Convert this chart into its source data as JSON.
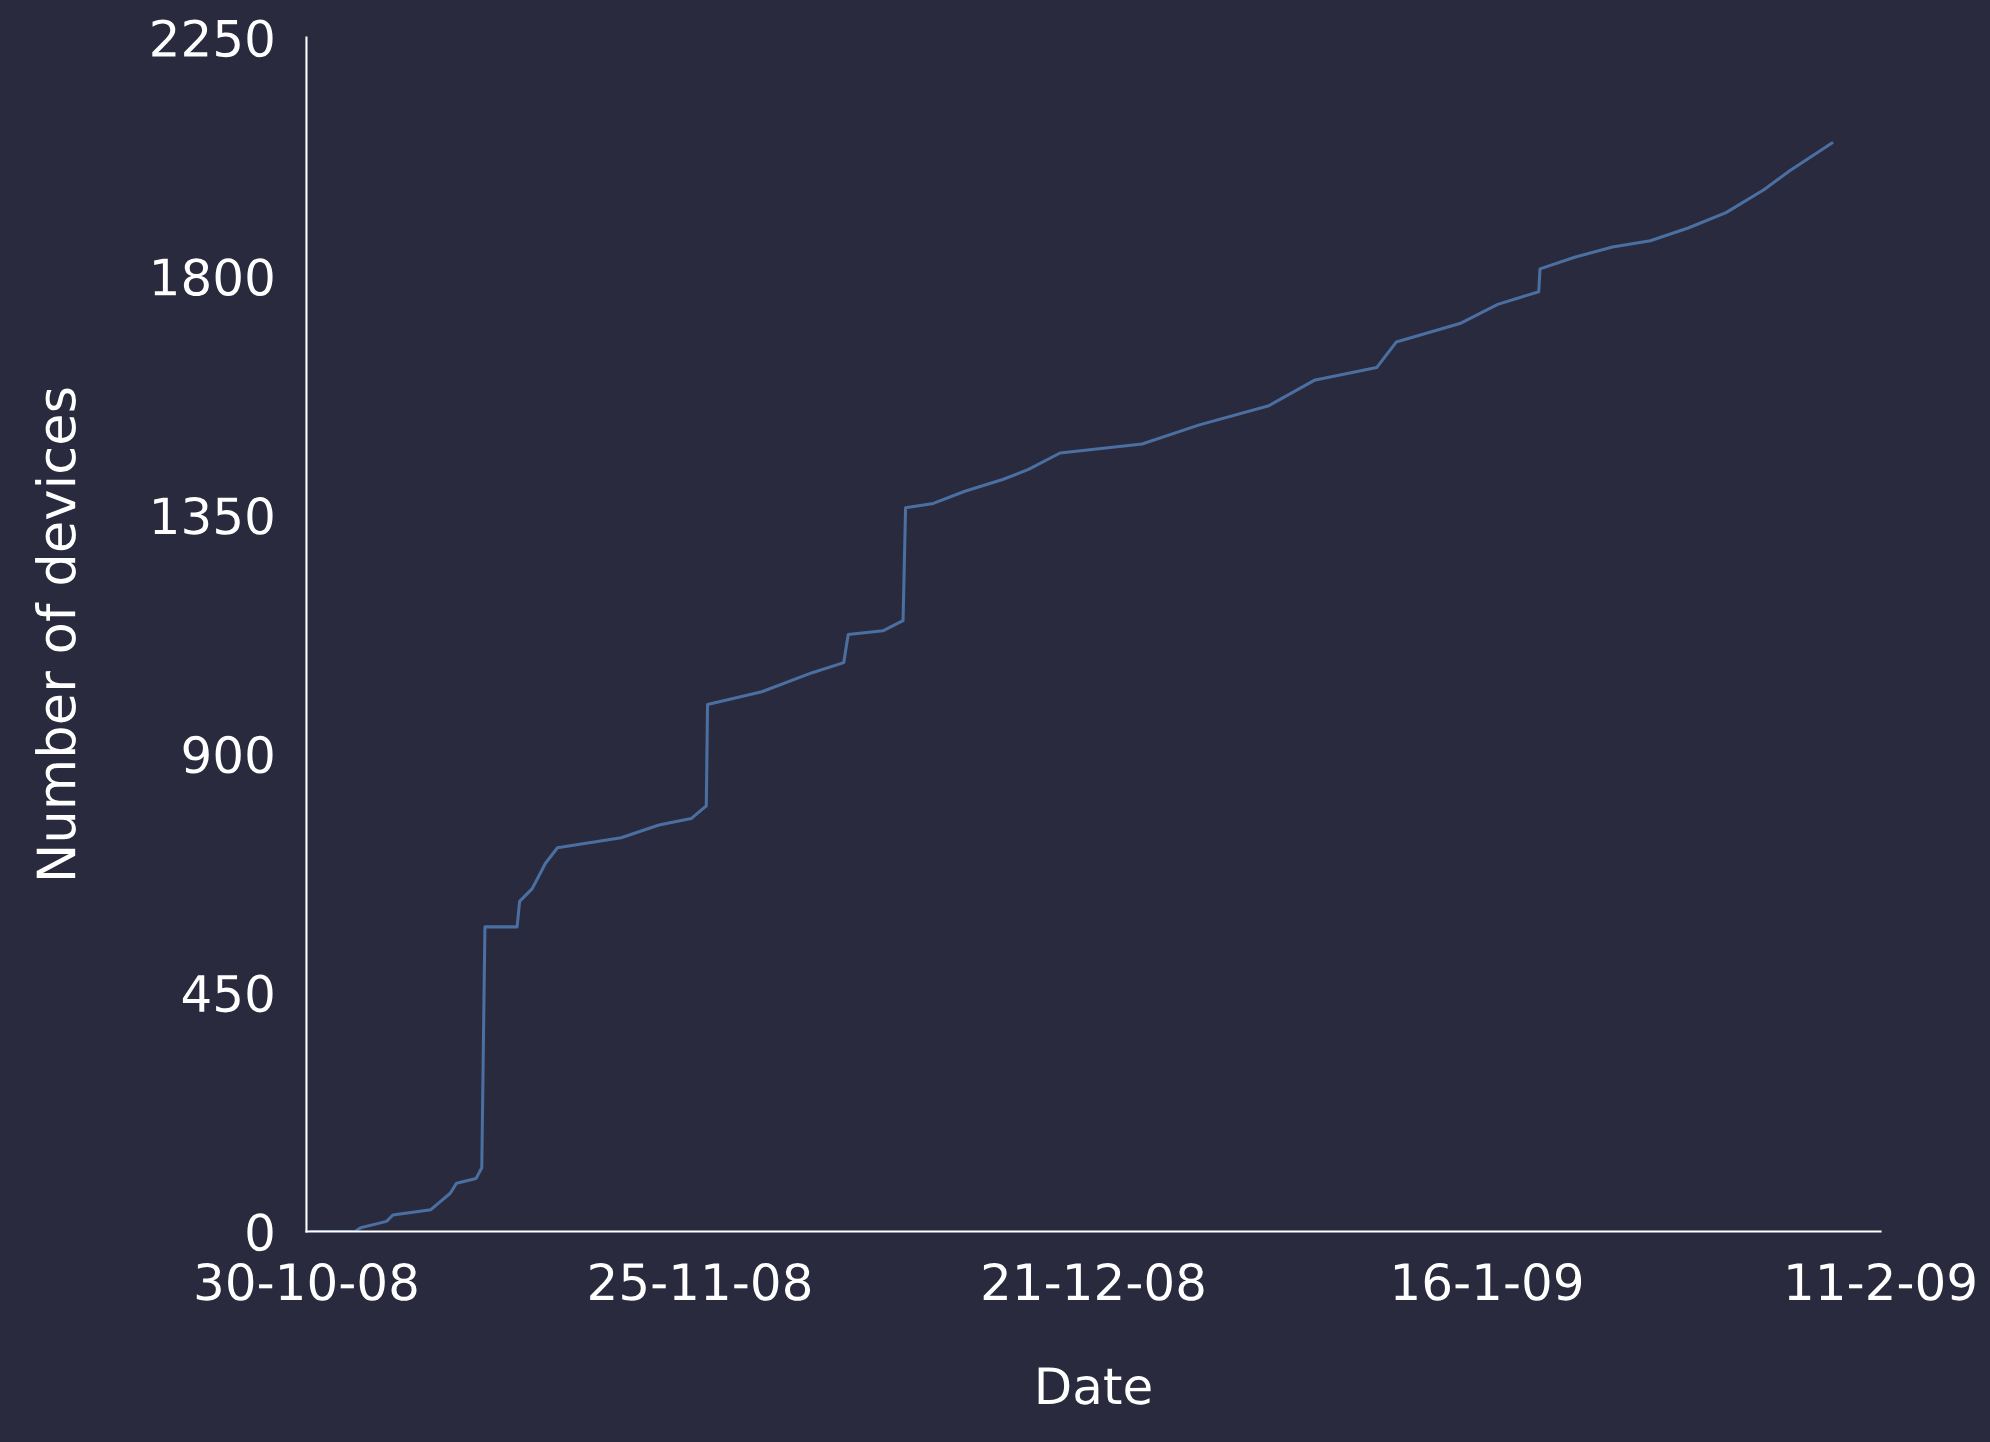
{
  "chart_data": {
    "type": "line",
    "xlabel": "Date",
    "ylabel": "Number of devices",
    "x": [
      "2008-10-30T06:00",
      "2008-11-02T05:00",
      "2008-11-02T14:00",
      "2008-11-04T07:00",
      "2008-11-04T17:00",
      "2008-11-07T05:00",
      "2008-11-07T17:00",
      "2008-11-08T12:00",
      "2008-11-08T22:00",
      "2008-11-10T05:00",
      "2008-11-10T14:00",
      "2008-11-10T19:00",
      "2008-11-12T22:00",
      "2008-11-13T02:00",
      "2008-11-13T22:00",
      "2008-11-14T19:00",
      "2008-11-15T14:00",
      "2008-11-19T19:00",
      "2008-11-22T07:00",
      "2008-11-24T10:00",
      "2008-11-25T10:00",
      "2008-11-25T12:00",
      "2008-11-29T02:00",
      "2008-12-02T10:00",
      "2008-12-04T12:00",
      "2008-12-04T19:00",
      "2008-12-07T02:00",
      "2008-12-08T10:00",
      "2008-12-08T14:00",
      "2008-12-10T10:00",
      "2008-12-12T12:00",
      "2008-12-15T00:00",
      "2008-12-16T17:00",
      "2008-12-18T19:00",
      "2008-12-24T05:00",
      "2008-12-28T00:00",
      "2009-01-01T14:00",
      "2009-01-04T14:00",
      "2009-01-08T17:00",
      "2009-01-10T00:00",
      "2009-01-14T05:00",
      "2009-01-16T17:00",
      "2009-01-19T10:00",
      "2009-01-19T12:00",
      "2009-01-21T19:00",
      "2009-01-24T07:00",
      "2009-01-26T19:00",
      "2009-01-29T07:00",
      "2009-01-31T19:00",
      "2009-02-03T07:00",
      "2009-02-05T00:00",
      "2009-02-07T19:00"
    ],
    "series": [
      {
        "color": "#4a6fa0",
        "values": [
          0,
          0,
          7,
          19,
          31,
          41,
          53,
          72,
          91,
          100,
          120,
          574,
          574,
          622,
          646,
          694,
          723,
          742,
          766,
          778,
          802,
          993,
          1017,
          1053,
          1072,
          1125,
          1132,
          1151,
          1364,
          1372,
          1395,
          1417,
          1436,
          1467,
          1484,
          1520,
          1556,
          1604,
          1628,
          1676,
          1711,
          1747,
          1771,
          1814,
          1836,
          1855,
          1867,
          1891,
          1920,
          1963,
          1999,
          2051
        ]
      }
    ],
    "xlim": [
      "2008-10-30",
      "2009-02-11"
    ],
    "xticks": [
      {
        "value": "2008-10-30",
        "label": "30-10-08"
      },
      {
        "value": "2008-11-25",
        "label": "25-11-08"
      },
      {
        "value": "2008-12-21",
        "label": "21-12-08"
      },
      {
        "value": "2009-01-16",
        "label": "16-1-09"
      },
      {
        "value": "2009-02-11",
        "label": "11-2-09"
      }
    ],
    "ylim": [
      0,
      2250
    ],
    "yticks": [
      0,
      450,
      900,
      1350,
      1800,
      2250
    ],
    "grid": false,
    "legend": false,
    "marker": "none",
    "line_style": "solid"
  }
}
